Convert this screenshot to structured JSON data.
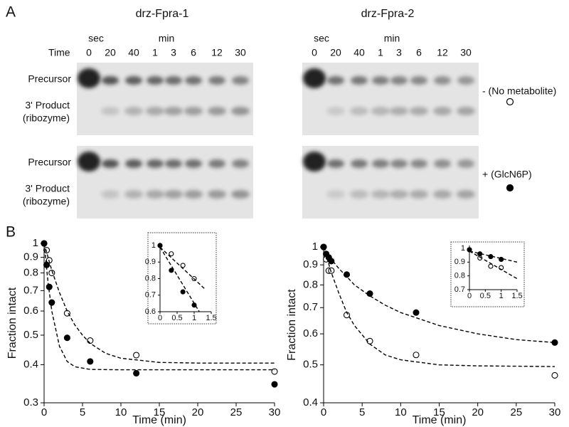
{
  "panel_a": {
    "label": "A",
    "gels": [
      {
        "title": "drz-Fpra-1"
      },
      {
        "title": "drz-Fpra-2"
      }
    ],
    "sec": "sec",
    "min": "min",
    "time": "Time",
    "lanes": [
      "0",
      "20",
      "40",
      "1",
      "3",
      "6",
      "12",
      "30"
    ],
    "precursor": "Precursor",
    "product": "3' Product",
    "product_sub": "(ribozyme)",
    "conditions": [
      "- (No metabolite)",
      "+ (GlcN6P)"
    ]
  },
  "panel_b": {
    "label": "B"
  },
  "chart_data": [
    {
      "type": "scatter",
      "ylog": true,
      "xlabel": "Time (min)",
      "ylabel": "Fraction intact",
      "xlim": [
        0,
        30
      ],
      "ylim": [
        0.3,
        1
      ],
      "xticks": [
        0,
        5,
        10,
        15,
        20,
        25,
        30
      ],
      "yticks": [
        0.3,
        0.4,
        0.5,
        0.6,
        0.7,
        0.8,
        0.9,
        1
      ],
      "series": [
        {
          "marker": "open",
          "color": "#000000",
          "x": [
            0,
            0.33,
            0.67,
            1,
            3,
            6,
            12,
            30
          ],
          "values": [
            1,
            0.95,
            0.88,
            0.8,
            0.59,
            0.48,
            0.43,
            0.38
          ]
        },
        {
          "marker": "filled",
          "color": "#000000",
          "x": [
            0,
            0.33,
            0.67,
            1,
            3,
            6,
            12,
            30
          ],
          "values": [
            1,
            0.85,
            0.72,
            0.64,
            0.49,
            0.41,
            0.375,
            0.345
          ]
        },
        {
          "marker": "dashed",
          "color": "#000000",
          "x": [
            0,
            1,
            2,
            3,
            4,
            5,
            6,
            8,
            10,
            15,
            20,
            30
          ],
          "values": [
            1,
            0.816,
            0.69,
            0.6,
            0.54,
            0.5,
            0.47,
            0.436,
            0.42,
            0.407,
            0.405,
            0.405
          ]
        },
        {
          "marker": "dashed",
          "color": "#000000",
          "x": [
            0,
            0.5,
            1,
            2,
            3,
            4,
            6,
            10,
            30
          ],
          "values": [
            1,
            0.75,
            0.6,
            0.46,
            0.41,
            0.394,
            0.386,
            0.385,
            0.385
          ]
        }
      ]
    },
    {
      "type": "scatter",
      "ylog": false,
      "xlim": [
        0,
        1.5
      ],
      "ylim": [
        0.6,
        1
      ],
      "xticks": [
        0,
        0.5,
        1,
        1.5
      ],
      "yticks": [
        0.6,
        0.7,
        0.8,
        0.9,
        1
      ],
      "series": [
        {
          "marker": "open",
          "color": "#000000",
          "x": [
            0,
            0.33,
            0.67,
            1
          ],
          "values": [
            1,
            0.95,
            0.88,
            0.8
          ]
        },
        {
          "marker": "filled",
          "color": "#000000",
          "x": [
            0,
            0.33,
            0.67,
            1
          ],
          "values": [
            1,
            0.85,
            0.72,
            0.64
          ]
        },
        {
          "marker": "dashed",
          "color": "#000000",
          "x": [
            0,
            1.3
          ],
          "values": [
            0.99,
            0.74
          ]
        },
        {
          "marker": "dashed",
          "color": "#000000",
          "x": [
            0,
            1.15
          ],
          "values": [
            0.99,
            0.6
          ]
        }
      ]
    },
    {
      "type": "scatter",
      "ylog": true,
      "xlabel": "Time (min)",
      "ylabel": "Fraction intact",
      "xlim": [
        0,
        30
      ],
      "ylim": [
        0.4,
        1
      ],
      "xticks": [
        0,
        5,
        10,
        15,
        20,
        25,
        30
      ],
      "yticks": [
        0.4,
        0.5,
        0.6,
        0.7,
        0.8,
        0.9,
        1
      ],
      "series": [
        {
          "marker": "open",
          "color": "#000000",
          "x": [
            0,
            0.33,
            0.67,
            1,
            3,
            6,
            12,
            30
          ],
          "values": [
            1,
            0.93,
            0.87,
            0.87,
            0.67,
            0.575,
            0.53,
            0.47
          ]
        },
        {
          "marker": "filled",
          "color": "#000000",
          "x": [
            0,
            0.33,
            0.67,
            1,
            3,
            6,
            12,
            30
          ],
          "values": [
            1,
            0.96,
            0.94,
            0.92,
            0.85,
            0.76,
            0.68,
            0.57
          ]
        },
        {
          "marker": "dashed",
          "color": "#000000",
          "x": [
            0,
            1,
            2,
            3,
            4,
            6,
            8,
            10,
            15,
            20,
            25,
            30
          ],
          "values": [
            1,
            0.93,
            0.88,
            0.84,
            0.8,
            0.75,
            0.71,
            0.68,
            0.63,
            0.6,
            0.58,
            0.57
          ]
        },
        {
          "marker": "dashed",
          "color": "#000000",
          "x": [
            0,
            1,
            2,
            3,
            4,
            6,
            8,
            10,
            15,
            20,
            25,
            30
          ],
          "values": [
            1,
            0.86,
            0.76,
            0.68,
            0.63,
            0.565,
            0.53,
            0.515,
            0.5,
            0.497,
            0.496,
            0.495
          ]
        }
      ]
    },
    {
      "type": "scatter",
      "ylog": false,
      "xlim": [
        0,
        1.5
      ],
      "ylim": [
        0.7,
        1
      ],
      "xticks": [
        0,
        0.5,
        1,
        1.5
      ],
      "yticks": [
        0.7,
        0.8,
        0.9,
        1
      ],
      "series": [
        {
          "marker": "open",
          "color": "#000000",
          "x": [
            0,
            0.33,
            0.67,
            1
          ],
          "values": [
            0.99,
            0.93,
            0.87,
            0.86
          ]
        },
        {
          "marker": "filled",
          "color": "#000000",
          "x": [
            0,
            0.33,
            0.67,
            1
          ],
          "values": [
            0.99,
            0.96,
            0.94,
            0.92
          ]
        },
        {
          "marker": "dashed",
          "color": "#000000",
          "x": [
            0,
            1.5
          ],
          "values": [
            0.98,
            0.9
          ]
        },
        {
          "marker": "dashed",
          "color": "#000000",
          "x": [
            0,
            1.5
          ],
          "values": [
            0.98,
            0.78
          ]
        }
      ]
    }
  ]
}
